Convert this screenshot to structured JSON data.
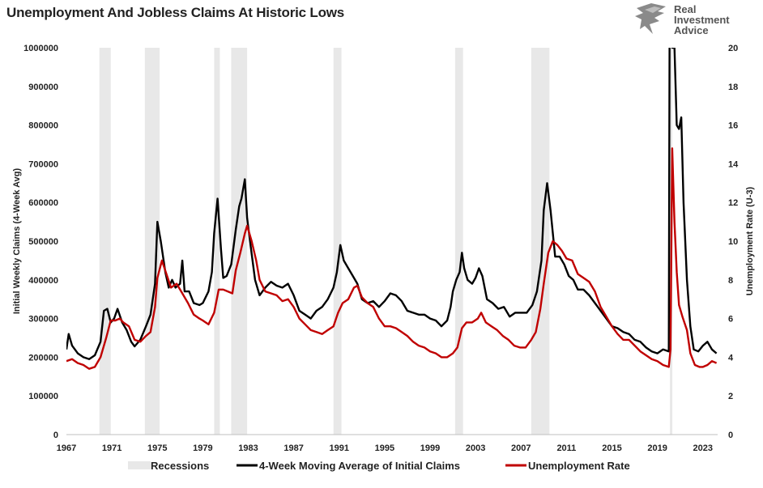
{
  "logo": {
    "line1": "Real",
    "line2": "Investment",
    "line3": "Advice"
  },
  "chart_data": {
    "type": "line",
    "title": "Unemployment And Jobless Claims At Historic Lows",
    "ylabel_left": "Initial Weekly Claims (4-Week Avg)",
    "ylabel_right": "Unemployment Rate (U-3)",
    "x_ticks": [
      "1967",
      "1971",
      "1975",
      "1979",
      "1983",
      "1987",
      "1991",
      "1995",
      "1999",
      "2003",
      "2007",
      "2011",
      "2015",
      "2019",
      "2023"
    ],
    "xlim": [
      1967,
      2024.3
    ],
    "ylim_left": [
      0,
      1000000
    ],
    "ylim_right": [
      0,
      20
    ],
    "y_left_ticks": [
      "0",
      "100000",
      "200000",
      "300000",
      "400000",
      "500000",
      "600000",
      "700000",
      "800000",
      "900000",
      "1000000"
    ],
    "y_right_ticks": [
      "0",
      "2",
      "4",
      "6",
      "8",
      "10",
      "12",
      "14",
      "16",
      "18",
      "20"
    ],
    "recessions": [
      [
        1969.9,
        1970.9
      ],
      [
        1973.9,
        1975.2
      ],
      [
        1980.0,
        1980.5
      ],
      [
        1981.5,
        1982.9
      ],
      [
        1990.5,
        1991.2
      ],
      [
        2001.2,
        2001.9
      ],
      [
        2007.9,
        2009.5
      ],
      [
        2020.1,
        2020.3
      ]
    ],
    "legend": [
      {
        "label": "Recessions",
        "color": "#e8e8e8",
        "kind": "area"
      },
      {
        "label": "4-Week Moving Average of Initial Claims",
        "color": "#000000",
        "kind": "line"
      },
      {
        "label": "Unemployment Rate",
        "color": "#c00000",
        "kind": "line"
      }
    ],
    "series": [
      {
        "name": "4-Week Moving Average of Initial Claims",
        "axis": "left",
        "color": "#000000",
        "points": [
          [
            1967.0,
            220000
          ],
          [
            1967.2,
            260000
          ],
          [
            1967.5,
            230000
          ],
          [
            1968.0,
            210000
          ],
          [
            1968.5,
            200000
          ],
          [
            1969.0,
            195000
          ],
          [
            1969.5,
            205000
          ],
          [
            1970.0,
            240000
          ],
          [
            1970.3,
            320000
          ],
          [
            1970.6,
            325000
          ],
          [
            1970.9,
            290000
          ],
          [
            1971.2,
            300000
          ],
          [
            1971.5,
            325000
          ],
          [
            1971.9,
            290000
          ],
          [
            1972.3,
            270000
          ],
          [
            1972.7,
            240000
          ],
          [
            1973.0,
            228000
          ],
          [
            1973.5,
            245000
          ],
          [
            1974.0,
            280000
          ],
          [
            1974.4,
            310000
          ],
          [
            1974.8,
            390000
          ],
          [
            1975.0,
            550000
          ],
          [
            1975.3,
            500000
          ],
          [
            1975.7,
            420000
          ],
          [
            1976.0,
            380000
          ],
          [
            1976.3,
            400000
          ],
          [
            1976.6,
            380000
          ],
          [
            1977.0,
            390000
          ],
          [
            1977.2,
            450000
          ],
          [
            1977.4,
            370000
          ],
          [
            1977.8,
            370000
          ],
          [
            1978.2,
            340000
          ],
          [
            1978.7,
            335000
          ],
          [
            1979.0,
            340000
          ],
          [
            1979.5,
            370000
          ],
          [
            1979.8,
            420000
          ],
          [
            1980.0,
            520000
          ],
          [
            1980.3,
            610000
          ],
          [
            1980.6,
            480000
          ],
          [
            1980.8,
            405000
          ],
          [
            1981.1,
            410000
          ],
          [
            1981.5,
            440000
          ],
          [
            1981.9,
            530000
          ],
          [
            1982.2,
            590000
          ],
          [
            1982.4,
            610000
          ],
          [
            1982.7,
            660000
          ],
          [
            1982.9,
            560000
          ],
          [
            1983.2,
            490000
          ],
          [
            1983.6,
            400000
          ],
          [
            1984.0,
            360000
          ],
          [
            1984.5,
            380000
          ],
          [
            1985.0,
            395000
          ],
          [
            1985.5,
            385000
          ],
          [
            1986.0,
            380000
          ],
          [
            1986.5,
            390000
          ],
          [
            1987.0,
            360000
          ],
          [
            1987.5,
            320000
          ],
          [
            1988.0,
            310000
          ],
          [
            1988.5,
            300000
          ],
          [
            1989.0,
            320000
          ],
          [
            1989.5,
            330000
          ],
          [
            1990.0,
            350000
          ],
          [
            1990.5,
            380000
          ],
          [
            1990.8,
            420000
          ],
          [
            1991.1,
            490000
          ],
          [
            1991.4,
            450000
          ],
          [
            1991.8,
            430000
          ],
          [
            1992.2,
            410000
          ],
          [
            1992.6,
            390000
          ],
          [
            1993.0,
            350000
          ],
          [
            1993.5,
            340000
          ],
          [
            1994.0,
            345000
          ],
          [
            1994.5,
            330000
          ],
          [
            1995.0,
            345000
          ],
          [
            1995.5,
            365000
          ],
          [
            1996.0,
            360000
          ],
          [
            1996.5,
            345000
          ],
          [
            1997.0,
            320000
          ],
          [
            1997.5,
            315000
          ],
          [
            1998.0,
            310000
          ],
          [
            1998.5,
            310000
          ],
          [
            1999.0,
            300000
          ],
          [
            1999.5,
            295000
          ],
          [
            2000.0,
            280000
          ],
          [
            2000.5,
            295000
          ],
          [
            2000.8,
            330000
          ],
          [
            2001.0,
            370000
          ],
          [
            2001.3,
            400000
          ],
          [
            2001.6,
            420000
          ],
          [
            2001.8,
            470000
          ],
          [
            2002.0,
            430000
          ],
          [
            2002.3,
            400000
          ],
          [
            2002.7,
            390000
          ],
          [
            2003.0,
            405000
          ],
          [
            2003.3,
            430000
          ],
          [
            2003.6,
            410000
          ],
          [
            2004.0,
            350000
          ],
          [
            2004.5,
            340000
          ],
          [
            2005.0,
            325000
          ],
          [
            2005.5,
            330000
          ],
          [
            2006.0,
            305000
          ],
          [
            2006.5,
            315000
          ],
          [
            2007.0,
            315000
          ],
          [
            2007.5,
            315000
          ],
          [
            2008.0,
            335000
          ],
          [
            2008.4,
            370000
          ],
          [
            2008.8,
            450000
          ],
          [
            2009.0,
            580000
          ],
          [
            2009.3,
            650000
          ],
          [
            2009.6,
            580000
          ],
          [
            2010.0,
            460000
          ],
          [
            2010.4,
            460000
          ],
          [
            2010.8,
            440000
          ],
          [
            2011.2,
            410000
          ],
          [
            2011.6,
            400000
          ],
          [
            2012.0,
            375000
          ],
          [
            2012.5,
            375000
          ],
          [
            2013.0,
            360000
          ],
          [
            2013.5,
            340000
          ],
          [
            2014.0,
            320000
          ],
          [
            2014.5,
            300000
          ],
          [
            2015.0,
            280000
          ],
          [
            2015.5,
            275000
          ],
          [
            2016.0,
            265000
          ],
          [
            2016.5,
            260000
          ],
          [
            2017.0,
            245000
          ],
          [
            2017.5,
            240000
          ],
          [
            2018.0,
            225000
          ],
          [
            2018.5,
            215000
          ],
          [
            2019.0,
            210000
          ],
          [
            2019.5,
            220000
          ],
          [
            2020.0,
            215000
          ],
          [
            2020.15,
            2000000
          ],
          [
            2020.3,
            1000000
          ],
          [
            2020.5,
            1000000
          ],
          [
            2020.7,
            800000
          ],
          [
            2020.9,
            790000
          ],
          [
            2021.1,
            820000
          ],
          [
            2021.3,
            600000
          ],
          [
            2021.6,
            400000
          ],
          [
            2021.9,
            280000
          ],
          [
            2022.2,
            220000
          ],
          [
            2022.6,
            215000
          ],
          [
            2023.0,
            230000
          ],
          [
            2023.4,
            240000
          ],
          [
            2023.8,
            220000
          ],
          [
            2024.2,
            210000
          ]
        ]
      },
      {
        "name": "Unemployment Rate",
        "axis": "right",
        "color": "#c00000",
        "points": [
          [
            1967.0,
            3.8
          ],
          [
            1967.5,
            3.9
          ],
          [
            1968.0,
            3.7
          ],
          [
            1968.5,
            3.6
          ],
          [
            1969.0,
            3.4
          ],
          [
            1969.5,
            3.5
          ],
          [
            1970.0,
            4.0
          ],
          [
            1970.5,
            5.0
          ],
          [
            1970.9,
            5.9
          ],
          [
            1971.3,
            5.9
          ],
          [
            1971.7,
            6.0
          ],
          [
            1972.0,
            5.8
          ],
          [
            1972.5,
            5.6
          ],
          [
            1973.0,
            4.9
          ],
          [
            1973.5,
            4.8
          ],
          [
            1974.0,
            5.1
          ],
          [
            1974.4,
            5.3
          ],
          [
            1974.8,
            6.6
          ],
          [
            1975.0,
            8.1
          ],
          [
            1975.4,
            9.0
          ],
          [
            1975.8,
            8.3
          ],
          [
            1976.2,
            7.6
          ],
          [
            1976.7,
            7.8
          ],
          [
            1977.2,
            7.3
          ],
          [
            1977.7,
            6.8
          ],
          [
            1978.2,
            6.2
          ],
          [
            1978.7,
            6.0
          ],
          [
            1979.0,
            5.9
          ],
          [
            1979.5,
            5.7
          ],
          [
            1980.0,
            6.3
          ],
          [
            1980.4,
            7.5
          ],
          [
            1980.8,
            7.5
          ],
          [
            1981.2,
            7.4
          ],
          [
            1981.6,
            7.3
          ],
          [
            1981.9,
            8.5
          ],
          [
            1982.3,
            9.4
          ],
          [
            1982.7,
            10.4
          ],
          [
            1982.9,
            10.8
          ],
          [
            1983.3,
            10.0
          ],
          [
            1983.7,
            9.0
          ],
          [
            1984.0,
            8.0
          ],
          [
            1984.5,
            7.4
          ],
          [
            1985.0,
            7.3
          ],
          [
            1985.5,
            7.2
          ],
          [
            1986.0,
            6.9
          ],
          [
            1986.5,
            7.0
          ],
          [
            1987.0,
            6.6
          ],
          [
            1987.5,
            6.0
          ],
          [
            1988.0,
            5.7
          ],
          [
            1988.5,
            5.4
          ],
          [
            1989.0,
            5.3
          ],
          [
            1989.5,
            5.2
          ],
          [
            1990.0,
            5.4
          ],
          [
            1990.5,
            5.6
          ],
          [
            1990.9,
            6.3
          ],
          [
            1991.3,
            6.8
          ],
          [
            1991.8,
            7.0
          ],
          [
            1992.3,
            7.6
          ],
          [
            1992.6,
            7.7
          ],
          [
            1993.0,
            7.1
          ],
          [
            1993.5,
            6.8
          ],
          [
            1994.0,
            6.6
          ],
          [
            1994.5,
            6.0
          ],
          [
            1995.0,
            5.6
          ],
          [
            1995.5,
            5.6
          ],
          [
            1996.0,
            5.5
          ],
          [
            1996.5,
            5.3
          ],
          [
            1997.0,
            5.1
          ],
          [
            1997.5,
            4.8
          ],
          [
            1998.0,
            4.6
          ],
          [
            1998.5,
            4.5
          ],
          [
            1999.0,
            4.3
          ],
          [
            1999.5,
            4.2
          ],
          [
            2000.0,
            4.0
          ],
          [
            2000.5,
            4.0
          ],
          [
            2001.0,
            4.2
          ],
          [
            2001.4,
            4.5
          ],
          [
            2001.8,
            5.5
          ],
          [
            2002.2,
            5.8
          ],
          [
            2002.7,
            5.8
          ],
          [
            2003.2,
            6.0
          ],
          [
            2003.5,
            6.3
          ],
          [
            2003.9,
            5.8
          ],
          [
            2004.4,
            5.6
          ],
          [
            2004.9,
            5.4
          ],
          [
            2005.4,
            5.1
          ],
          [
            2005.9,
            4.9
          ],
          [
            2006.4,
            4.6
          ],
          [
            2006.9,
            4.5
          ],
          [
            2007.4,
            4.5
          ],
          [
            2007.9,
            4.9
          ],
          [
            2008.3,
            5.3
          ],
          [
            2008.7,
            6.5
          ],
          [
            2009.0,
            7.8
          ],
          [
            2009.4,
            9.4
          ],
          [
            2009.8,
            10.0
          ],
          [
            2010.2,
            9.8
          ],
          [
            2010.6,
            9.5
          ],
          [
            2011.0,
            9.1
          ],
          [
            2011.5,
            9.0
          ],
          [
            2012.0,
            8.3
          ],
          [
            2012.5,
            8.1
          ],
          [
            2013.0,
            7.9
          ],
          [
            2013.5,
            7.4
          ],
          [
            2014.0,
            6.6
          ],
          [
            2014.5,
            6.1
          ],
          [
            2015.0,
            5.6
          ],
          [
            2015.5,
            5.2
          ],
          [
            2016.0,
            4.9
          ],
          [
            2016.5,
            4.9
          ],
          [
            2017.0,
            4.6
          ],
          [
            2017.5,
            4.3
          ],
          [
            2018.0,
            4.1
          ],
          [
            2018.5,
            3.9
          ],
          [
            2019.0,
            3.8
          ],
          [
            2019.5,
            3.6
          ],
          [
            2020.0,
            3.5
          ],
          [
            2020.15,
            4.4
          ],
          [
            2020.3,
            14.8
          ],
          [
            2020.5,
            11.0
          ],
          [
            2020.7,
            8.4
          ],
          [
            2020.9,
            6.7
          ],
          [
            2021.2,
            6.1
          ],
          [
            2021.6,
            5.4
          ],
          [
            2021.9,
            4.2
          ],
          [
            2022.3,
            3.6
          ],
          [
            2022.7,
            3.5
          ],
          [
            2023.0,
            3.5
          ],
          [
            2023.4,
            3.6
          ],
          [
            2023.8,
            3.8
          ],
          [
            2024.2,
            3.7
          ]
        ]
      }
    ]
  }
}
